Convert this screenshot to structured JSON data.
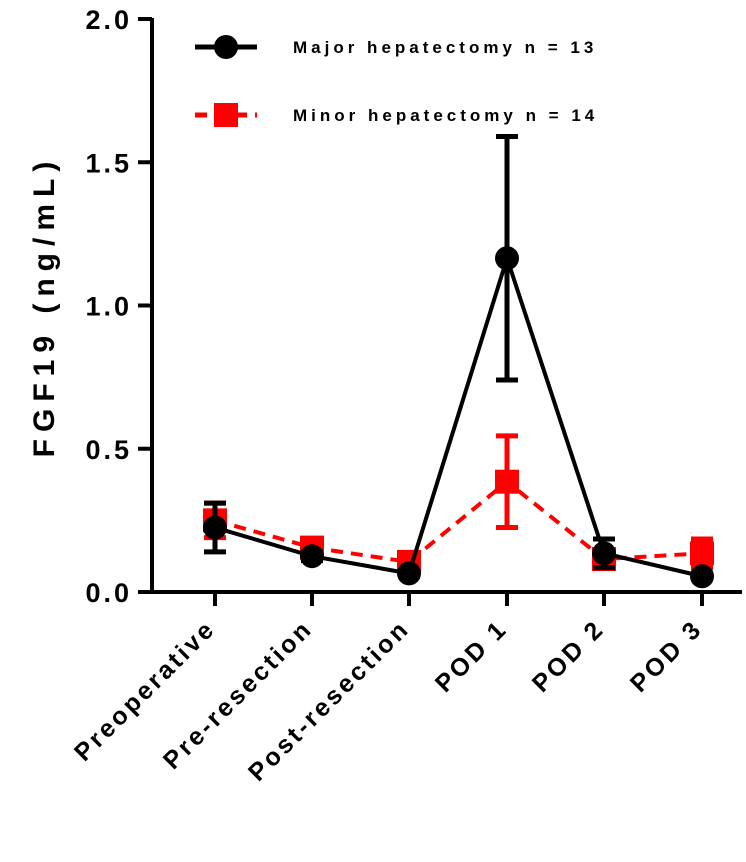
{
  "chart_data": {
    "type": "line",
    "ylabel": "FGF19 (ng/mL)",
    "xlabel": "",
    "categories": [
      "Preoperative",
      "Pre-resection",
      "Post-resection",
      "POD 1",
      "POD 2",
      "POD 3"
    ],
    "ylim": [
      0,
      2.0
    ],
    "yticks": [
      "0.0",
      "0.5",
      "1.0",
      "1.5",
      "2.0"
    ],
    "grid": false,
    "legend_position": "top-right",
    "series": [
      {
        "name": "Major hepatectomy n = 13",
        "color": "#000000",
        "marker": "circle",
        "line_style": "solid",
        "values": [
          0.225,
          0.125,
          0.065,
          1.165,
          0.135,
          0.055
        ],
        "error": [
          0.085,
          0.015,
          0.01,
          0.425,
          0.05,
          0.01
        ]
      },
      {
        "name": "Minor hepatectomy n = 14",
        "color": "#ff0000",
        "marker": "square",
        "line_style": "dashed",
        "values": [
          0.25,
          0.155,
          0.105,
          0.385,
          0.115,
          0.135
        ],
        "error": [
          0.06,
          0.02,
          0.025,
          0.16,
          0.03,
          0.05
        ]
      }
    ]
  }
}
